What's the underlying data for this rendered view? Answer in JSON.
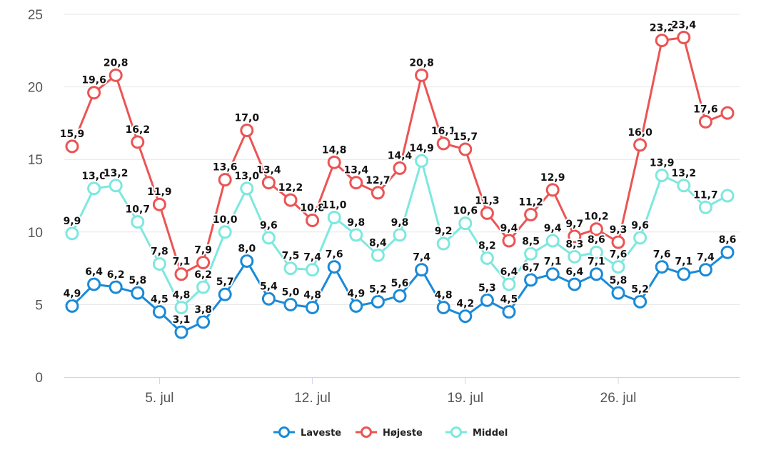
{
  "chart_data": {
    "type": "line",
    "title": "",
    "xlabel": "",
    "ylabel": "",
    "ylim": [
      0,
      25
    ],
    "yticks": [
      "0",
      "5",
      "10",
      "15",
      "20",
      "25"
    ],
    "x_start_date": "2021-07-01",
    "dates": [
      "2021-07-01",
      "2021-07-02",
      "2021-07-03",
      "2021-07-04",
      "2021-07-05",
      "2021-07-06",
      "2021-07-07",
      "2021-07-08",
      "2021-07-09",
      "2021-07-10",
      "2021-07-11",
      "2021-07-12",
      "2021-07-13",
      "2021-07-14",
      "2021-07-15",
      "2021-07-16",
      "2021-07-17",
      "2021-07-18",
      "2021-07-19",
      "2021-07-20",
      "2021-07-21",
      "2021-07-22",
      "2021-07-23",
      "2021-07-24",
      "2021-07-25",
      "2021-07-26",
      "2021-07-27",
      "2021-07-28",
      "2021-07-29",
      "2021-07-30",
      "2021-07-31"
    ],
    "xticks": [
      {
        "date": "2021-07-05",
        "label": "5. jul"
      },
      {
        "date": "2021-07-12",
        "label": "12. jul"
      },
      {
        "date": "2021-07-19",
        "label": "19. jul"
      },
      {
        "date": "2021-07-26",
        "label": "26. jul"
      }
    ],
    "grid": true,
    "legend_placement": "bottom-center",
    "series": [
      {
        "name": "Laveste",
        "color": "#1a8ad8",
        "values": [
          4.9,
          6.4,
          6.2,
          5.8,
          4.5,
          3.1,
          3.8,
          5.7,
          8.0,
          5.4,
          5.0,
          4.8,
          7.6,
          4.9,
          5.2,
          5.6,
          7.4,
          4.8,
          4.2,
          5.3,
          4.5,
          6.7,
          7.1,
          6.4,
          7.1,
          5.8,
          5.2,
          7.6,
          7.1,
          7.4,
          8.6
        ],
        "labels": [
          "4,9",
          "6,4",
          "6,2",
          "5,8",
          "4,5",
          "3,1",
          "3,8",
          "5,7",
          "8,0",
          "5,4",
          "5,0",
          "4,8",
          "7,6",
          "4,9",
          "5,2",
          "5,6",
          "7,4",
          "4,8",
          "4,2",
          "5,3",
          "4,5",
          "6,7",
          "7,1",
          "6,4",
          "7,1",
          "5,8",
          "5,2",
          "7,6",
          "7,1",
          "7,4",
          "8,6"
        ]
      },
      {
        "name": "Højeste",
        "color": "#ec5454",
        "values": [
          15.9,
          19.6,
          20.8,
          16.2,
          11.9,
          7.1,
          7.9,
          13.6,
          17.0,
          13.4,
          12.2,
          10.8,
          14.8,
          13.4,
          12.7,
          14.4,
          20.8,
          16.1,
          15.7,
          11.3,
          9.4,
          11.2,
          12.9,
          9.7,
          10.2,
          9.3,
          16.0,
          23.2,
          23.4,
          17.6,
          18.2
        ],
        "labels": [
          "15,9",
          "19,6",
          "20,8",
          "16,2",
          "11,9",
          "7,1",
          "7,9",
          "13,6",
          "17,0",
          "13,4",
          "12,2",
          "10,8",
          "14,8",
          "13,4",
          "12,7",
          "14,4",
          "20,8",
          "16,1",
          "15,7",
          "11,3",
          "9,4",
          "11,2",
          "12,9",
          "9,7",
          "10,2",
          "9,3",
          "16,0",
          "23,2",
          "23,4",
          "17,6",
          ""
        ]
      },
      {
        "name": "Middel",
        "color": "#7de8de",
        "values": [
          9.9,
          13.0,
          13.2,
          10.7,
          7.8,
          4.8,
          6.2,
          10.0,
          13.0,
          9.6,
          7.5,
          7.4,
          11.0,
          9.8,
          8.4,
          9.8,
          14.9,
          9.2,
          10.6,
          8.2,
          6.4,
          8.5,
          9.4,
          8.3,
          8.6,
          7.6,
          9.6,
          13.9,
          13.2,
          11.7,
          12.5
        ],
        "labels": [
          "9,9",
          "13,0",
          "13,2",
          "10,7",
          "7,8",
          "4,8",
          "6,2",
          "10,0",
          "13,0",
          "9,6",
          "7,5",
          "7,4",
          "11,0",
          "9,8",
          "8,4",
          "9,8",
          "14,9",
          "9,2",
          "10,6",
          "8,2",
          "6,4",
          "8,5",
          "9,4",
          "8,3",
          "8,6",
          "7,6",
          "9,6",
          "13,9",
          "13,2",
          "11,7",
          ""
        ]
      }
    ]
  }
}
